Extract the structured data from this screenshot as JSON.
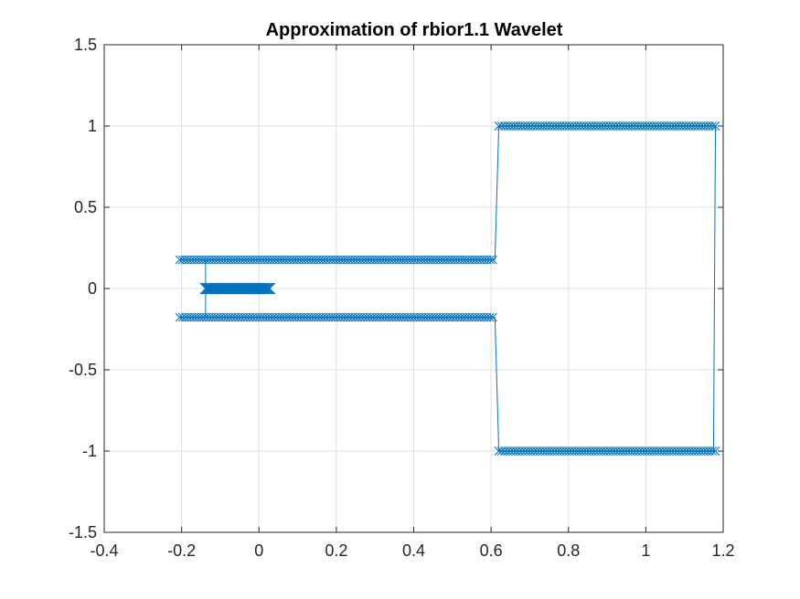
{
  "chart_data": {
    "type": "line",
    "title": "Approximation of rbior1.1 Wavelet",
    "xlabel": "",
    "ylabel": "",
    "xlim": [
      -0.4,
      1.2
    ],
    "ylim": [
      -1.5,
      1.5
    ],
    "xticks": [
      -0.4,
      -0.2,
      0,
      0.2,
      0.4,
      0.6,
      0.8,
      1,
      1.2
    ],
    "xtick_labels": [
      "-0.4",
      "-0.2",
      "0",
      "0.2",
      "0.4",
      "0.6",
      "0.8",
      "1",
      "1.2"
    ],
    "yticks": [
      -1.5,
      -1,
      -0.5,
      0,
      0.5,
      1,
      1.5
    ],
    "ytick_labels": [
      "-1.5",
      "-1",
      "-0.5",
      "0",
      "0.5",
      "1",
      "1.5"
    ],
    "grid": true,
    "marker": "x",
    "color": "#0072bd",
    "series": [
      {
        "segments": [
          {
            "x_start": -0.205,
            "x_end": 0.61,
            "y": 0.177
          },
          {
            "x_start": -0.205,
            "x_end": 0.61,
            "y": -0.177
          },
          {
            "x_start": -0.138,
            "x_end": 0.028,
            "y": 0.0,
            "dense": true
          },
          {
            "x_start": 0.62,
            "x_end": 1.18,
            "y": 1.0
          },
          {
            "x_start": 0.62,
            "x_end": 1.18,
            "y": -1.0
          }
        ],
        "connectors": [
          {
            "x1": -0.138,
            "y1": 0.177,
            "x2": -0.138,
            "y2": -0.177
          },
          {
            "x1": 0.61,
            "y1": 0.177,
            "x2": 0.62,
            "y2": 1.0
          },
          {
            "x1": 0.61,
            "y1": -0.177,
            "x2": 0.62,
            "y2": -1.0
          },
          {
            "x1": 1.18,
            "y1": 1.0,
            "x2": 1.175,
            "y2": -1.0
          }
        ]
      }
    ]
  }
}
